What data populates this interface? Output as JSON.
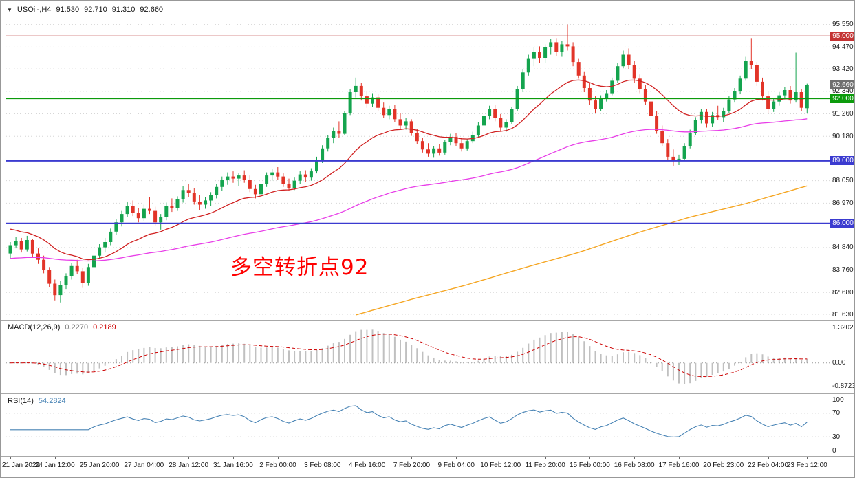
{
  "window": {
    "dropdown_icon": "▼",
    "symbol_timeframe": "USOil-,H4",
    "open": "91.530",
    "high": "92.710",
    "low": "91.310",
    "close": "92.660"
  },
  "annotation": {
    "text": "多空转折点92",
    "color": "#FF0000"
  },
  "colors": {
    "background": "#ffffff",
    "border": "#989898",
    "separator": "#a8a8a8",
    "grid": "#d6d6d6"
  },
  "indicators": {
    "macd": {
      "label": "MACD(12,26,9)",
      "value_main": "0.2270",
      "value_signal": "0.2189",
      "axis_labels": [
        "1.3202",
        "0.00",
        "-0.8723"
      ],
      "axis_values": [
        1.3202,
        0,
        -0.8723
      ],
      "fast": 12,
      "slow": 26,
      "signal": 9,
      "histogram_color": "#c0c0c0",
      "signal_color": "#cc0000"
    },
    "rsi": {
      "label": "RSI(14)",
      "value": "54.2824",
      "axis_labels": [
        "100",
        "70",
        "30",
        "0"
      ],
      "axis_values": [
        100,
        70,
        30,
        0
      ],
      "period": 14,
      "levels": [
        70,
        30
      ],
      "line_color": "#4682b4"
    }
  },
  "price_scale": {
    "badges": [
      {
        "text": "95.000",
        "price": 95.0,
        "bg": "#c43232"
      },
      {
        "text": "92.660",
        "price": 92.66,
        "bg": "#6f6f6f"
      },
      {
        "text": "92.000",
        "price": 92.0,
        "bg": "#0c9b0c"
      },
      {
        "text": "89.000",
        "price": 89.0,
        "bg": "#3b3bd0"
      },
      {
        "text": "86.000",
        "price": 86.0,
        "bg": "#3b3bd0"
      }
    ]
  },
  "chart_data": {
    "type": "candlestick",
    "symbol": "USOil-",
    "timeframe": "H4",
    "ylim": [
      81.4,
      96.43
    ],
    "y_tick_labels": [
      "95.550",
      "94.470",
      "93.420",
      "92.340",
      "91.260",
      "90.180",
      "88.050",
      "86.970",
      "84.840",
      "83.760",
      "82.680",
      "81.630"
    ],
    "x_labels": [
      "21 Jan 2022",
      "24 Jan 12:00",
      "25 Jan 20:00",
      "27 Jan 04:00",
      "28 Jan 12:00",
      "31 Jan 16:00",
      "2 Feb 00:00",
      "3 Feb 08:00",
      "4 Feb 16:00",
      "7 Feb 20:00",
      "9 Feb 04:00",
      "10 Feb 12:00",
      "11 Feb 20:00",
      "15 Feb 00:00",
      "16 Feb 08:00",
      "17 Feb 16:00",
      "20 Feb 23:00",
      "22 Feb 04:00",
      "23 Feb 12:00"
    ],
    "up_color": "#14a44e",
    "down_color": "#e23428",
    "hlines": [
      {
        "price": 95.0,
        "color": "#b22222",
        "width": 1
      },
      {
        "price": 92.0,
        "color": "#0c9b0c",
        "width": 2
      },
      {
        "price": 89.0,
        "color": "#3b3bd0",
        "width": 2
      },
      {
        "price": 86.0,
        "color": "#3b3bd0",
        "width": 2
      }
    ],
    "overlays": {
      "ma_fast": {
        "type": "ema",
        "period": 21,
        "seed": 85.8,
        "color": "#d02020"
      },
      "ma_mid": {
        "type": "ema",
        "period": 90,
        "seed": 84.3,
        "color": "#e83ee8"
      },
      "ma_long": {
        "color": "#f5a623",
        "points": [
          [
            62,
            81.6
          ],
          [
            72,
            82.35
          ],
          [
            82,
            83.05
          ],
          [
            92,
            83.85
          ],
          [
            102,
            84.6
          ],
          [
            112,
            85.5
          ],
          [
            122,
            86.3
          ],
          [
            132,
            86.95
          ],
          [
            143,
            87.8
          ]
        ]
      }
    },
    "ohlc": [
      [
        84.55,
        85.1,
        84.3,
        84.95
      ],
      [
        84.95,
        85.35,
        84.8,
        85.15
      ],
      [
        85.15,
        85.3,
        84.6,
        84.75
      ],
      [
        84.75,
        85.4,
        84.65,
        85.2
      ],
      [
        85.2,
        85.25,
        84.4,
        84.55
      ],
      [
        84.55,
        84.8,
        84.05,
        84.25
      ],
      [
        84.25,
        84.45,
        83.6,
        83.75
      ],
      [
        83.75,
        83.9,
        82.95,
        83.1
      ],
      [
        83.1,
        83.3,
        82.3,
        82.55
      ],
      [
        82.55,
        83.25,
        82.2,
        83.05
      ],
      [
        83.05,
        83.6,
        82.85,
        83.45
      ],
      [
        83.45,
        84.1,
        83.3,
        83.95
      ],
      [
        83.95,
        84.25,
        83.55,
        83.7
      ],
      [
        83.7,
        83.85,
        82.9,
        83.15
      ],
      [
        83.15,
        84.05,
        83.0,
        83.9
      ],
      [
        83.9,
        84.6,
        83.8,
        84.45
      ],
      [
        84.45,
        85.0,
        84.3,
        84.85
      ],
      [
        84.85,
        85.3,
        84.6,
        85.1
      ],
      [
        85.1,
        85.75,
        84.95,
        85.6
      ],
      [
        85.6,
        86.2,
        85.45,
        86.05
      ],
      [
        86.05,
        86.6,
        85.85,
        86.45
      ],
      [
        86.45,
        87.05,
        86.3,
        86.85
      ],
      [
        86.85,
        87.1,
        86.35,
        86.5
      ],
      [
        86.5,
        86.75,
        86.05,
        86.25
      ],
      [
        86.25,
        86.9,
        86.1,
        86.7
      ],
      [
        86.7,
        87.25,
        86.45,
        86.6
      ],
      [
        86.6,
        86.8,
        85.9,
        86.05
      ],
      [
        86.05,
        86.45,
        85.7,
        86.3
      ],
      [
        86.3,
        87.0,
        86.15,
        86.85
      ],
      [
        86.85,
        87.2,
        86.55,
        86.75
      ],
      [
        86.75,
        87.3,
        86.6,
        87.15
      ],
      [
        87.15,
        87.8,
        87.0,
        87.6
      ],
      [
        87.6,
        87.9,
        87.25,
        87.45
      ],
      [
        87.45,
        87.7,
        86.9,
        87.05
      ],
      [
        87.05,
        87.35,
        86.65,
        86.9
      ],
      [
        86.9,
        87.25,
        86.7,
        87.1
      ],
      [
        87.1,
        87.5,
        86.85,
        87.35
      ],
      [
        87.35,
        87.9,
        87.2,
        87.75
      ],
      [
        87.75,
        88.25,
        87.55,
        88.1
      ],
      [
        88.1,
        88.45,
        87.85,
        88.25
      ],
      [
        88.25,
        88.5,
        87.95,
        88.15
      ],
      [
        88.15,
        88.4,
        87.8,
        88.3
      ],
      [
        88.3,
        88.55,
        87.95,
        88.1
      ],
      [
        88.1,
        88.3,
        87.5,
        87.65
      ],
      [
        87.65,
        87.85,
        87.2,
        87.4
      ],
      [
        87.4,
        88.0,
        87.3,
        87.9
      ],
      [
        87.9,
        88.45,
        87.75,
        88.3
      ],
      [
        88.3,
        88.6,
        88.05,
        88.45
      ],
      [
        88.45,
        88.7,
        88.1,
        88.25
      ],
      [
        88.25,
        88.4,
        87.75,
        87.9
      ],
      [
        87.9,
        88.15,
        87.55,
        87.7
      ],
      [
        87.7,
        88.2,
        87.6,
        88.05
      ],
      [
        88.05,
        88.5,
        87.9,
        88.35
      ],
      [
        88.35,
        88.55,
        88.0,
        88.2
      ],
      [
        88.2,
        88.65,
        88.05,
        88.5
      ],
      [
        88.5,
        89.2,
        88.4,
        89.05
      ],
      [
        89.05,
        89.75,
        88.9,
        89.6
      ],
      [
        89.6,
        90.25,
        89.45,
        90.1
      ],
      [
        90.1,
        90.6,
        89.85,
        90.45
      ],
      [
        90.45,
        90.9,
        90.1,
        90.3
      ],
      [
        90.3,
        91.4,
        90.25,
        91.3
      ],
      [
        91.3,
        92.45,
        91.2,
        92.3
      ],
      [
        92.3,
        93.0,
        92.05,
        92.6
      ],
      [
        92.6,
        92.75,
        91.9,
        92.1
      ],
      [
        92.1,
        92.35,
        91.55,
        91.75
      ],
      [
        91.75,
        92.25,
        91.6,
        92.05
      ],
      [
        92.05,
        92.2,
        91.4,
        91.55
      ],
      [
        91.55,
        91.8,
        91.05,
        91.2
      ],
      [
        91.2,
        91.65,
        91.0,
        91.5
      ],
      [
        91.5,
        91.7,
        90.85,
        91.0
      ],
      [
        91.0,
        91.3,
        90.55,
        90.7
      ],
      [
        90.7,
        91.05,
        90.5,
        90.9
      ],
      [
        90.9,
        91.0,
        90.2,
        90.35
      ],
      [
        90.35,
        90.55,
        89.8,
        89.95
      ],
      [
        89.95,
        90.1,
        89.4,
        89.55
      ],
      [
        89.55,
        89.85,
        89.2,
        89.35
      ],
      [
        89.35,
        89.7,
        89.15,
        89.6
      ],
      [
        89.6,
        89.8,
        89.25,
        89.4
      ],
      [
        89.4,
        90.0,
        89.3,
        89.9
      ],
      [
        89.9,
        90.3,
        89.75,
        90.15
      ],
      [
        90.15,
        90.35,
        89.7,
        89.85
      ],
      [
        89.85,
        90.1,
        89.45,
        89.6
      ],
      [
        89.6,
        90.05,
        89.5,
        89.95
      ],
      [
        89.95,
        90.4,
        89.85,
        90.25
      ],
      [
        90.25,
        90.85,
        90.15,
        90.7
      ],
      [
        90.7,
        91.3,
        90.6,
        91.15
      ],
      [
        91.15,
        91.65,
        91.0,
        91.5
      ],
      [
        91.5,
        91.7,
        90.9,
        91.05
      ],
      [
        91.05,
        91.25,
        90.45,
        90.6
      ],
      [
        90.6,
        91.0,
        90.4,
        90.85
      ],
      [
        90.85,
        91.6,
        90.75,
        91.5
      ],
      [
        91.5,
        92.6,
        91.4,
        92.45
      ],
      [
        92.45,
        93.4,
        92.3,
        93.25
      ],
      [
        93.25,
        94.1,
        93.1,
        93.9
      ],
      [
        93.9,
        94.45,
        93.55,
        94.25
      ],
      [
        94.25,
        94.5,
        93.7,
        93.95
      ],
      [
        93.95,
        94.6,
        93.7,
        94.45
      ],
      [
        94.45,
        94.85,
        94.1,
        94.7
      ],
      [
        94.7,
        94.9,
        94.05,
        94.25
      ],
      [
        94.25,
        94.75,
        94.0,
        94.6
      ],
      [
        94.6,
        95.55,
        94.3,
        94.5
      ],
      [
        94.5,
        94.7,
        93.55,
        93.75
      ],
      [
        93.75,
        93.9,
        92.95,
        93.1
      ],
      [
        93.1,
        93.3,
        92.3,
        92.5
      ],
      [
        92.5,
        92.75,
        91.7,
        91.9
      ],
      [
        91.9,
        92.1,
        91.3,
        91.5
      ],
      [
        91.5,
        92.15,
        91.4,
        92.0
      ],
      [
        92.0,
        92.4,
        91.85,
        92.25
      ],
      [
        92.25,
        93.0,
        92.15,
        92.85
      ],
      [
        92.85,
        93.7,
        92.75,
        93.55
      ],
      [
        93.55,
        94.3,
        93.45,
        94.1
      ],
      [
        94.1,
        94.4,
        93.4,
        93.6
      ],
      [
        93.6,
        93.8,
        92.75,
        92.95
      ],
      [
        92.95,
        93.15,
        92.25,
        92.45
      ],
      [
        92.45,
        92.65,
        91.7,
        91.85
      ],
      [
        91.85,
        92.05,
        91.0,
        91.15
      ],
      [
        91.15,
        91.4,
        90.3,
        90.45
      ],
      [
        90.45,
        90.7,
        89.7,
        89.85
      ],
      [
        89.85,
        90.05,
        89.0,
        89.2
      ],
      [
        89.2,
        89.55,
        88.75,
        89.05
      ],
      [
        89.05,
        89.3,
        88.8,
        89.1
      ],
      [
        89.1,
        89.85,
        89.0,
        89.7
      ],
      [
        89.7,
        90.5,
        89.6,
        90.35
      ],
      [
        90.35,
        91.1,
        90.25,
        90.95
      ],
      [
        90.95,
        91.5,
        90.8,
        91.35
      ],
      [
        91.35,
        91.5,
        90.6,
        90.8
      ],
      [
        90.8,
        91.35,
        90.65,
        91.2
      ],
      [
        91.2,
        91.65,
        90.95,
        91.1
      ],
      [
        91.1,
        91.55,
        90.85,
        91.4
      ],
      [
        91.4,
        92.1,
        91.3,
        91.95
      ],
      [
        91.95,
        92.5,
        91.8,
        92.35
      ],
      [
        92.35,
        93.1,
        92.2,
        92.95
      ],
      [
        92.95,
        94.0,
        92.85,
        93.8
      ],
      [
        93.8,
        94.9,
        93.4,
        93.6
      ],
      [
        93.6,
        93.75,
        92.6,
        92.8
      ],
      [
        92.8,
        93.0,
        91.9,
        92.1
      ],
      [
        92.1,
        92.3,
        91.3,
        91.5
      ],
      [
        91.5,
        92.0,
        91.35,
        91.85
      ],
      [
        91.85,
        92.3,
        91.65,
        92.15
      ],
      [
        92.15,
        92.55,
        91.95,
        92.4
      ],
      [
        92.4,
        92.6,
        91.75,
        91.9
      ],
      [
        91.9,
        94.2,
        91.8,
        92.3
      ],
      [
        92.3,
        92.45,
        91.4,
        91.55
      ],
      [
        91.53,
        92.71,
        91.31,
        92.66
      ]
    ]
  }
}
